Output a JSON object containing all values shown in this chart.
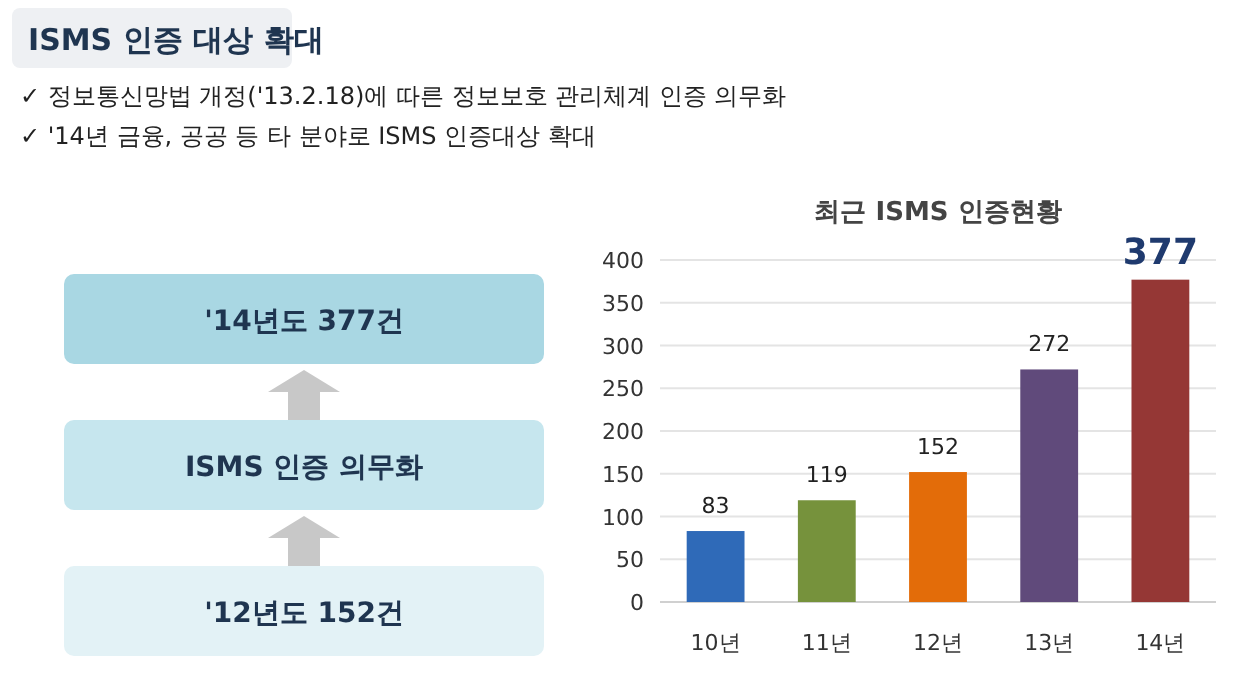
{
  "chart_data": [
    {
      "type": "other",
      "title": "ISMS 인증 대상 확대",
      "annotations": [
        "✓ 정보통신망법 개정('13.2.18)에 따른 정보보호 관리체계 인증 의무화",
        "✓ '14년 금융, 공공 등 타 분야로 ISMS 인증대상 확대",
        "'14년도 377건",
        "ISMS 인증 의무화",
        "'12년도 152건"
      ]
    },
    {
      "type": "bar",
      "title": "최근 ISMS 인증현황",
      "categories": [
        "10년",
        "11년",
        "12년",
        "13년",
        "14년"
      ],
      "values": [
        83,
        119,
        152,
        272,
        377
      ],
      "colors": [
        "#2f6ab8",
        "#76923c",
        "#e36c09",
        "#604a7b",
        "#953735"
      ],
      "ylim": [
        0,
        400
      ],
      "yticks": [
        0,
        50,
        100,
        150,
        200,
        250,
        300,
        350,
        400
      ],
      "grid": "y",
      "data_labels": true
    }
  ]
}
